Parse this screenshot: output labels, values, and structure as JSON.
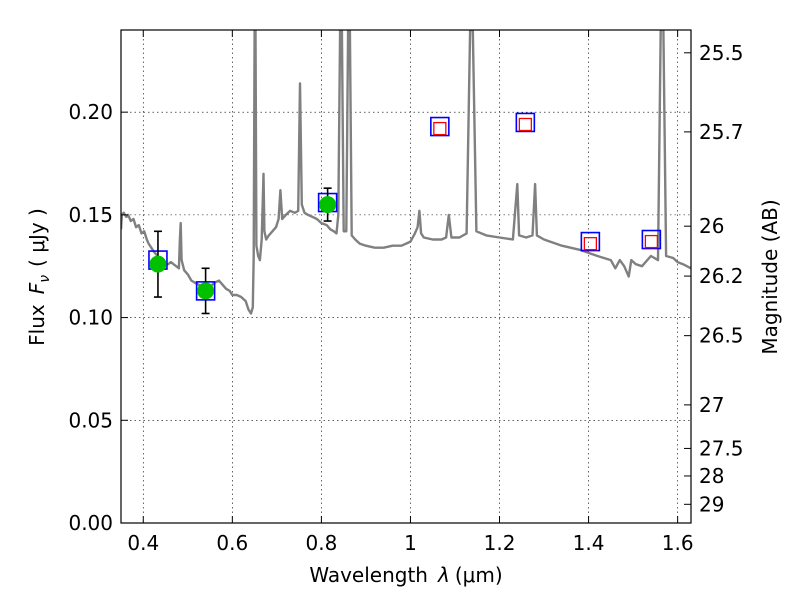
{
  "chart_data": {
    "type": "line",
    "title": "",
    "xlabel_prefix": "Wavelength",
    "xlabel_symbol": "λ",
    "xlabel_unit": "(μm)",
    "ylabel_prefix": "Flux",
    "ylabel_symbol": "F",
    "ylabel_subscript": "ν",
    "ylabel_unit": "( μJy )",
    "y2label": "Magnitude (AB)",
    "xlim": [
      0.35,
      1.63
    ],
    "ylim": [
      0.0,
      0.24
    ],
    "grid": true,
    "x_ticks": [
      0.4,
      0.6,
      0.8,
      1.0,
      1.2,
      1.4,
      1.6
    ],
    "x_tick_labels": [
      "0.4",
      "0.6",
      "0.8",
      "1",
      "1.2",
      "1.4",
      "1.6"
    ],
    "y_ticks": [
      0.0,
      0.05,
      0.1,
      0.15,
      0.2
    ],
    "y_tick_labels": [
      "0.00",
      "0.05",
      "0.10",
      "0.15",
      "0.20"
    ],
    "y2_ticks": [
      {
        "label": "25.5",
        "flux": 0.2289
      },
      {
        "label": "25.7",
        "flux": 0.1904
      },
      {
        "label": "26",
        "flux": 0.1445
      },
      {
        "label": "26.2",
        "flux": 0.1202
      },
      {
        "label": "26.5",
        "flux": 0.0912
      },
      {
        "label": "27",
        "flux": 0.0575
      },
      {
        "label": "27.5",
        "flux": 0.0363
      },
      {
        "label": "28",
        "flux": 0.0229
      },
      {
        "label": "29",
        "flux": 0.0091
      }
    ],
    "series": [
      {
        "kind": "spectrum",
        "color": "#808080",
        "points": [
          [
            0.35,
            0.143
          ],
          [
            0.352,
            0.15
          ],
          [
            0.356,
            0.151
          ],
          [
            0.362,
            0.149
          ],
          [
            0.366,
            0.15
          ],
          [
            0.372,
            0.147
          ],
          [
            0.378,
            0.148
          ],
          [
            0.384,
            0.144
          ],
          [
            0.39,
            0.145
          ],
          [
            0.396,
            0.141
          ],
          [
            0.402,
            0.142
          ],
          [
            0.408,
            0.138
          ],
          [
            0.412,
            0.136
          ],
          [
            0.418,
            0.134
          ],
          [
            0.424,
            0.132
          ],
          [
            0.432,
            0.13
          ],
          [
            0.44,
            0.128
          ],
          [
            0.448,
            0.126
          ],
          [
            0.456,
            0.126
          ],
          [
            0.462,
            0.127
          ],
          [
            0.468,
            0.126
          ],
          [
            0.474,
            0.125
          ],
          [
            0.48,
            0.124
          ],
          [
            0.482,
            0.137
          ],
          [
            0.484,
            0.146
          ],
          [
            0.486,
            0.128
          ],
          [
            0.492,
            0.123
          ],
          [
            0.5,
            0.121
          ],
          [
            0.508,
            0.118
          ],
          [
            0.516,
            0.117
          ],
          [
            0.524,
            0.116
          ],
          [
            0.532,
            0.115
          ],
          [
            0.54,
            0.114
          ],
          [
            0.55,
            0.115
          ],
          [
            0.56,
            0.117
          ],
          [
            0.57,
            0.118
          ],
          [
            0.578,
            0.116
          ],
          [
            0.586,
            0.114
          ],
          [
            0.594,
            0.113
          ],
          [
            0.6,
            0.111
          ],
          [
            0.61,
            0.111
          ],
          [
            0.62,
            0.11
          ],
          [
            0.63,
            0.108
          ],
          [
            0.636,
            0.104
          ],
          [
            0.642,
            0.102
          ],
          [
            0.646,
            0.105
          ],
          [
            0.648,
            0.13
          ],
          [
            0.65,
            0.24
          ],
          [
            0.652,
            0.24
          ],
          [
            0.654,
            0.135
          ],
          [
            0.658,
            0.13
          ],
          [
            0.662,
            0.128
          ],
          [
            0.666,
            0.138
          ],
          [
            0.67,
            0.17
          ],
          [
            0.672,
            0.142
          ],
          [
            0.676,
            0.138
          ],
          [
            0.682,
            0.14
          ],
          [
            0.69,
            0.142
          ],
          [
            0.698,
            0.144
          ],
          [
            0.704,
            0.148
          ],
          [
            0.708,
            0.162
          ],
          [
            0.712,
            0.148
          ],
          [
            0.72,
            0.15
          ],
          [
            0.73,
            0.152
          ],
          [
            0.74,
            0.151
          ],
          [
            0.748,
            0.152
          ],
          [
            0.752,
            0.214
          ],
          [
            0.756,
            0.155
          ],
          [
            0.762,
            0.151
          ],
          [
            0.77,
            0.15
          ],
          [
            0.78,
            0.149
          ],
          [
            0.79,
            0.148
          ],
          [
            0.8,
            0.146
          ],
          [
            0.812,
            0.145
          ],
          [
            0.82,
            0.143
          ],
          [
            0.828,
            0.142
          ],
          [
            0.834,
            0.141
          ],
          [
            0.838,
            0.15
          ],
          [
            0.842,
            0.24
          ],
          [
            0.846,
            0.24
          ],
          [
            0.85,
            0.142
          ],
          [
            0.856,
            0.142
          ],
          [
            0.86,
            0.24
          ],
          [
            0.864,
            0.24
          ],
          [
            0.868,
            0.14
          ],
          [
            0.876,
            0.138
          ],
          [
            0.886,
            0.136
          ],
          [
            0.9,
            0.135
          ],
          [
            0.92,
            0.134
          ],
          [
            0.94,
            0.134
          ],
          [
            0.96,
            0.135
          ],
          [
            0.98,
            0.135
          ],
          [
            1.0,
            0.137
          ],
          [
            1.01,
            0.141
          ],
          [
            1.016,
            0.144
          ],
          [
            1.02,
            0.152
          ],
          [
            1.024,
            0.141
          ],
          [
            1.03,
            0.139
          ],
          [
            1.05,
            0.138
          ],
          [
            1.07,
            0.138
          ],
          [
            1.08,
            0.139
          ],
          [
            1.086,
            0.15
          ],
          [
            1.092,
            0.139
          ],
          [
            1.11,
            0.139
          ],
          [
            1.126,
            0.141
          ],
          [
            1.134,
            0.24
          ],
          [
            1.14,
            0.24
          ],
          [
            1.148,
            0.142
          ],
          [
            1.17,
            0.14
          ],
          [
            1.2,
            0.139
          ],
          [
            1.23,
            0.138
          ],
          [
            1.24,
            0.165
          ],
          [
            1.244,
            0.14
          ],
          [
            1.26,
            0.139
          ],
          [
            1.274,
            0.14
          ],
          [
            1.28,
            0.165
          ],
          [
            1.284,
            0.14
          ],
          [
            1.3,
            0.138
          ],
          [
            1.34,
            0.135
          ],
          [
            1.38,
            0.133
          ],
          [
            1.42,
            0.13
          ],
          [
            1.45,
            0.128
          ],
          [
            1.46,
            0.124
          ],
          [
            1.47,
            0.128
          ],
          [
            1.48,
            0.125
          ],
          [
            1.49,
            0.12
          ],
          [
            1.496,
            0.128
          ],
          [
            1.506,
            0.126
          ],
          [
            1.52,
            0.125
          ],
          [
            1.54,
            0.13
          ],
          [
            1.556,
            0.128
          ],
          [
            1.562,
            0.24
          ],
          [
            1.568,
            0.24
          ],
          [
            1.574,
            0.13
          ],
          [
            1.59,
            0.129
          ],
          [
            1.6,
            0.127
          ],
          [
            1.612,
            0.126
          ],
          [
            1.63,
            0.124
          ]
        ]
      },
      {
        "kind": "observed",
        "color": "#00c000",
        "points": [
          {
            "x": 0.433,
            "y": 0.126,
            "err": 0.016
          },
          {
            "x": 0.54,
            "y": 0.113,
            "err": 0.011
          },
          {
            "x": 0.814,
            "y": 0.155,
            "err": 0.008
          }
        ]
      },
      {
        "kind": "model_blue",
        "color": "#0000ff",
        "points": [
          {
            "x": 0.433,
            "y": 0.128
          },
          {
            "x": 0.54,
            "y": 0.113
          },
          {
            "x": 0.814,
            "y": 0.156
          },
          {
            "x": 1.066,
            "y": 0.193
          },
          {
            "x": 1.258,
            "y": 0.195
          },
          {
            "x": 1.404,
            "y": 0.137
          },
          {
            "x": 1.541,
            "y": 0.138
          }
        ]
      },
      {
        "kind": "model_red",
        "color": "#ff0000",
        "points": [
          {
            "x": 1.066,
            "y": 0.192
          },
          {
            "x": 1.258,
            "y": 0.194
          },
          {
            "x": 1.404,
            "y": 0.136
          },
          {
            "x": 1.541,
            "y": 0.137
          }
        ]
      }
    ]
  }
}
